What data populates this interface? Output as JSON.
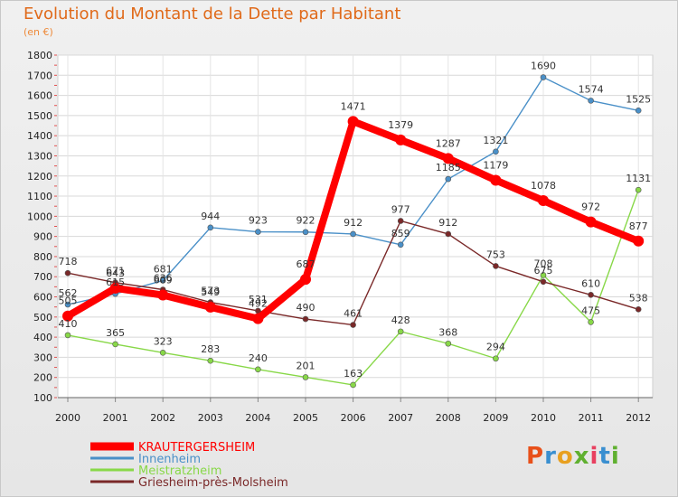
{
  "chart_data": {
    "type": "line",
    "title": "Evolution du Montant de la Dette par Habitant",
    "subtitle": "(en €)",
    "x": [
      "2000",
      "2001",
      "2002",
      "2003",
      "2004",
      "2005",
      "2006",
      "2007",
      "2008",
      "2009",
      "2010",
      "2011",
      "2012"
    ],
    "ylim": [
      100,
      1800
    ],
    "yticks": [
      100,
      200,
      300,
      400,
      500,
      600,
      700,
      800,
      900,
      1000,
      1100,
      1200,
      1300,
      1400,
      1500,
      1600,
      1700,
      1800
    ],
    "grid": true,
    "legend_position": "bottom-left",
    "series": [
      {
        "name": "KRAUTERGERSHEIM",
        "color": "#ff0000",
        "values": [
          505,
          643,
          609,
          549,
          492,
          687,
          1471,
          1379,
          1287,
          1179,
          1078,
          972,
          877
        ]
      },
      {
        "name": "Innenheim",
        "color": "#4a90c8",
        "values": [
          562,
          615,
          681,
          944,
          923,
          922,
          912,
          859,
          1185,
          1321,
          1690,
          1574,
          1525
        ]
      },
      {
        "name": "Meistratzheim",
        "color": "#88d848",
        "values": [
          410,
          365,
          323,
          283,
          240,
          201,
          163,
          428,
          368,
          294,
          708,
          475,
          1131
        ]
      },
      {
        "name": "Griesheim-près-Molsheim",
        "color": "#7a2828",
        "values": [
          718,
          671,
          636,
          573,
          531,
          490,
          461,
          977,
          912,
          753,
          675,
          610,
          538
        ]
      }
    ]
  },
  "branding": {
    "logo_text": "Proxiti",
    "logo_colors": [
      "#e8501a",
      "#3a8fd0",
      "#e8a020",
      "#60b030",
      "#e84060",
      "#3a8fd0",
      "#60b030"
    ]
  }
}
